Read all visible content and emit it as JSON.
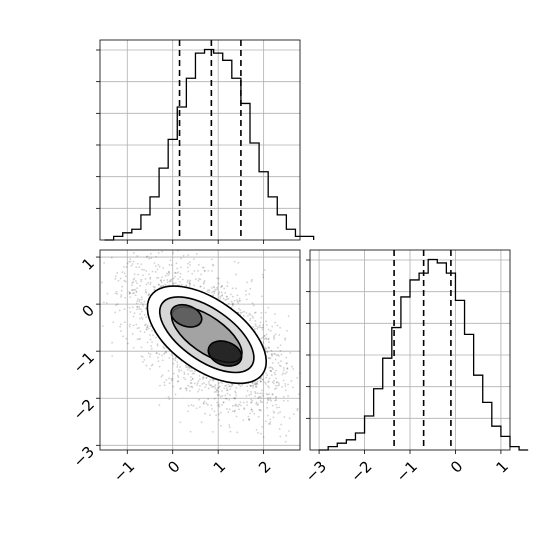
{
  "chart_data": {
    "type": "corner",
    "grid": true,
    "panels": [
      {
        "id": "hist_x",
        "type": "histogram",
        "x_range": [
          -1.6,
          2.8
        ],
        "bins_start": -1.5,
        "bin_width": 0.2,
        "counts": [
          0,
          1,
          2,
          3,
          7,
          12,
          20,
          28,
          37,
          45,
          52,
          53,
          52,
          50,
          45,
          38,
          27,
          19,
          12,
          7,
          3,
          1,
          1
        ],
        "quantiles": [
          0.15,
          0.85,
          1.5
        ],
        "x_ticks": [
          -1,
          0,
          1,
          2
        ],
        "x_tick_labels": [],
        "y_tick_labels": []
      },
      {
        "id": "scatter_xy",
        "type": "density_contour",
        "x_range": [
          -1.6,
          2.8
        ],
        "y_range": [
          -3.1,
          1.15
        ],
        "x_ticks": [
          -1,
          0,
          1,
          2
        ],
        "x_tick_labels": [
          "−1",
          "0",
          "1",
          "2"
        ],
        "y_ticks": [
          1,
          0,
          -1,
          -2,
          -3
        ],
        "y_tick_labels": [
          "1",
          "0",
          "−1",
          "−2",
          "−3"
        ],
        "components": [
          {
            "mean": [
              0.3,
              -0.25
            ],
            "sd": [
              0.45,
              0.35
            ],
            "weight": 0.45
          },
          {
            "mean": [
              1.15,
              -1.05
            ],
            "sd": [
              0.45,
              0.4
            ],
            "weight": 0.55
          }
        ],
        "contours": [
          {
            "level": 0.12,
            "center": [
              0.75,
              -0.65
            ],
            "rx": 1.5,
            "ry": 0.75,
            "angle": -35
          },
          {
            "level": 0.4,
            "center": [
              0.75,
              -0.65
            ],
            "rx": 1.2,
            "ry": 0.55,
            "angle": -35
          },
          {
            "level": 0.7,
            "center": [
              0.75,
              -0.65
            ],
            "rx": 0.9,
            "ry": 0.38,
            "angle": -35
          },
          {
            "level": 0.9,
            "center": [
              0.3,
              -0.25
            ],
            "rx": 0.35,
            "ry": 0.22,
            "angle": -20
          },
          {
            "level": 0.9,
            "center": [
              1.15,
              -1.05
            ],
            "rx": 0.38,
            "ry": 0.25,
            "angle": -20
          }
        ]
      },
      {
        "id": "hist_y",
        "type": "histogram",
        "x_range": [
          -3.2,
          1.2
        ],
        "bins_start": -3.0,
        "bin_width": 0.2,
        "counts": [
          0,
          1,
          2,
          3,
          5,
          10,
          18,
          27,
          36,
          45,
          50,
          52,
          56,
          55,
          52,
          44,
          34,
          22,
          14,
          7,
          4,
          1,
          0
        ],
        "quantiles": [
          -1.35,
          -0.7,
          -0.1
        ],
        "x_ticks": [
          -3,
          -2,
          -1,
          0,
          1
        ],
        "x_tick_labels": [
          "−3",
          "−2",
          "−1",
          "0",
          "1"
        ],
        "y_tick_labels": []
      }
    ]
  }
}
